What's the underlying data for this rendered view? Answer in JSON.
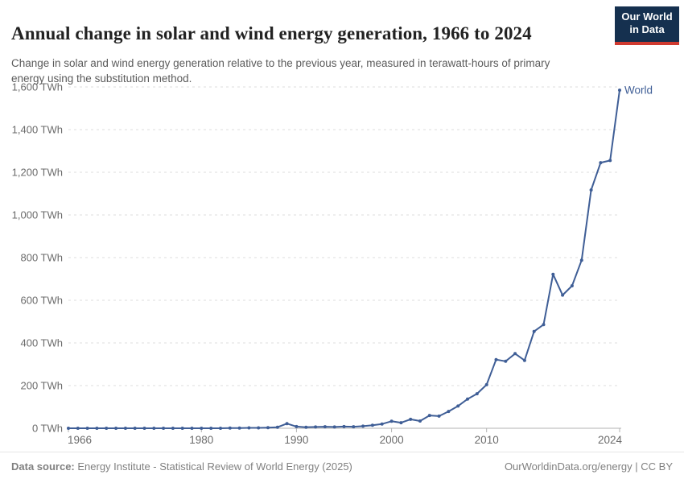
{
  "header": {
    "title": "Annual change in solar and wind energy generation, 1966 to 2024",
    "subtitle": "Change in solar and wind energy generation relative to the previous year, measured in terawatt-hours of primary energy using the substitution method."
  },
  "logo": {
    "line1": "Our World",
    "line2": "in Data"
  },
  "colors": {
    "line": "#3F5E96",
    "grid": "#DDDDDD",
    "axis": "#B3B3B3",
    "tick_text": "#6B6B6B",
    "title_text": "#222222",
    "subtitle_text": "#5B5B5B",
    "footer_text": "#808080",
    "logo_bg": "#15304F",
    "logo_stripe": "#D03A30"
  },
  "chart_data": {
    "type": "line",
    "title": "Annual change in solar and wind energy generation, 1966 to 2024",
    "xlabel": "",
    "ylabel": "TWh",
    "ylim": [
      0,
      1600
    ],
    "grid": "horizontal dashed",
    "legend_position": "end-of-line label",
    "y_ticks": [
      0,
      200,
      400,
      600,
      800,
      1000,
      1200,
      1400,
      1600
    ],
    "y_tick_labels": [
      "0 TWh",
      "200 TWh",
      "400 TWh",
      "600 TWh",
      "800 TWh",
      "1,000 TWh",
      "1,200 TWh",
      "1,400 TWh",
      "1,600 TWh"
    ],
    "x_ticks": [
      1966,
      1980,
      1990,
      2000,
      2010,
      2024
    ],
    "x": [
      1966,
      1967,
      1968,
      1969,
      1970,
      1971,
      1972,
      1973,
      1974,
      1975,
      1976,
      1977,
      1978,
      1979,
      1980,
      1981,
      1982,
      1983,
      1984,
      1985,
      1986,
      1987,
      1988,
      1989,
      1990,
      1991,
      1992,
      1993,
      1994,
      1995,
      1996,
      1997,
      1998,
      1999,
      2000,
      2001,
      2002,
      2003,
      2004,
      2005,
      2006,
      2007,
      2008,
      2009,
      2010,
      2011,
      2012,
      2013,
      2014,
      2015,
      2016,
      2017,
      2018,
      2019,
      2020,
      2021,
      2022,
      2023,
      2024
    ],
    "series": [
      {
        "name": "World",
        "color": "#3F5E96",
        "values": [
          0,
          0,
          0,
          0,
          0,
          0,
          0,
          0,
          0,
          0,
          0,
          0,
          0,
          0,
          0,
          0,
          0,
          1,
          1,
          2,
          2,
          3,
          5,
          22,
          8,
          5,
          6,
          7,
          6,
          8,
          7,
          10,
          14,
          20,
          33,
          26,
          42,
          34,
          60,
          57,
          79,
          104,
          137,
          162,
          204,
          322,
          314,
          350,
          318,
          454,
          486,
          722,
          624,
          668,
          788,
          1117,
          1245,
          1255,
          1585
        ]
      }
    ]
  },
  "footer": {
    "source_label": "Data source:",
    "source_text": " Energy Institute - Statistical Review of World Energy (2025)",
    "credit": "OurWorldinData.org/energy | CC BY"
  }
}
